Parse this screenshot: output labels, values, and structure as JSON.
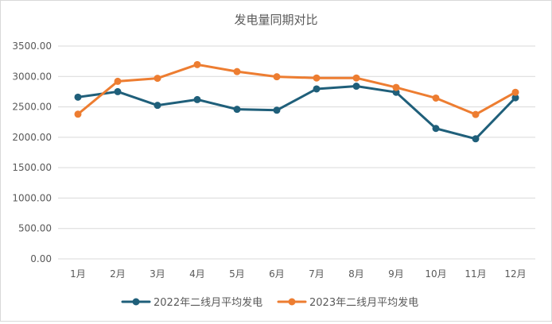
{
  "chart_data": {
    "type": "line",
    "title": "发电量同期对比",
    "xlabel": "",
    "ylabel": "",
    "categories": [
      "1月",
      "2月",
      "3月",
      "4月",
      "5月",
      "6月",
      "7月",
      "8月",
      "9月",
      "10月",
      "11月",
      "12月"
    ],
    "y_ticks": [
      "0.00",
      "500.00",
      "1000.00",
      "1500.00",
      "2000.00",
      "2500.00",
      "3000.00",
      "3500.00"
    ],
    "ylim": [
      0,
      3500
    ],
    "grid": "horizontal",
    "legend_position": "bottom",
    "series": [
      {
        "name": "2022年二线月平均发电",
        "color": "#1f5f7a",
        "values": [
          2660,
          2750,
          2525,
          2620,
          2460,
          2445,
          2795,
          2840,
          2740,
          2145,
          1975,
          2650
        ]
      },
      {
        "name": "2023年二线月平均发电",
        "color": "#ed7d31",
        "values": [
          2380,
          2920,
          2970,
          3195,
          3080,
          2995,
          2975,
          2975,
          2820,
          2645,
          2375,
          2740
        ]
      }
    ]
  }
}
